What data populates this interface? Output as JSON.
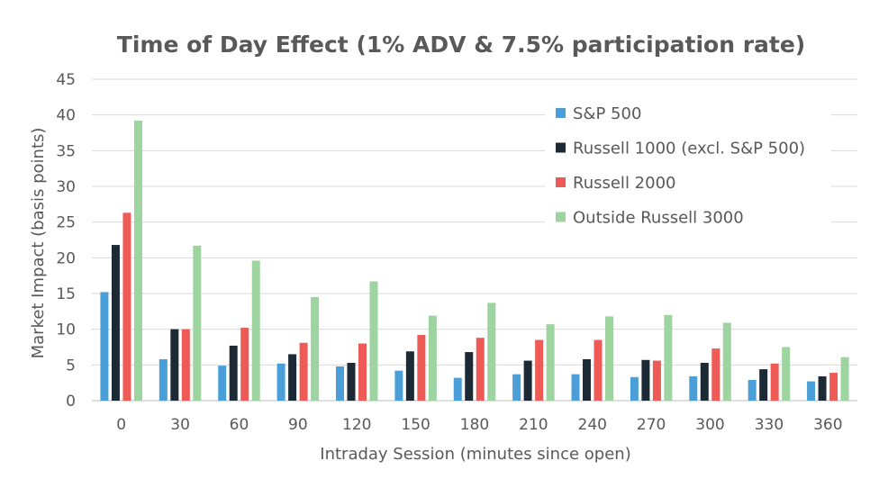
{
  "chart_data": {
    "type": "bar",
    "title": "Time of Day Effect (1% ADV & 7.5% participation rate)",
    "xlabel": "Intraday Session (minutes since open)",
    "ylabel": "Market Impact (basis points)",
    "ylim": [
      0,
      45
    ],
    "yticks": [
      "0",
      "5",
      "10",
      "15",
      "20",
      "25",
      "30",
      "35",
      "40",
      "45"
    ],
    "grid": true,
    "legend_position": "top-right",
    "categories": [
      "0",
      "30",
      "60",
      "90",
      "120",
      "150",
      "180",
      "210",
      "240",
      "270",
      "300",
      "330",
      "360"
    ],
    "series": [
      {
        "name": "S&P 500",
        "color": "#4a9fd8",
        "values": [
          15.2,
          5.8,
          4.9,
          5.2,
          4.8,
          4.2,
          3.2,
          3.7,
          3.7,
          3.3,
          3.4,
          2.9,
          2.7
        ]
      },
      {
        "name": "Russell 1000 (excl. S&P 500)",
        "color": "#1c2a36",
        "values": [
          21.8,
          10.0,
          7.7,
          6.5,
          5.3,
          6.9,
          6.8,
          5.6,
          5.8,
          5.7,
          5.3,
          4.4,
          3.4
        ]
      },
      {
        "name": "Russell 2000",
        "color": "#ee5a55",
        "values": [
          26.3,
          10.0,
          10.2,
          8.1,
          8.0,
          9.2,
          8.8,
          8.5,
          8.5,
          5.6,
          7.3,
          5.2,
          3.9
        ]
      },
      {
        "name": "Outside Russell 3000",
        "color": "#9dd49f",
        "values": [
          39.2,
          21.7,
          19.6,
          14.5,
          16.7,
          11.9,
          13.7,
          10.7,
          11.8,
          12.0,
          10.9,
          7.5,
          6.1
        ]
      }
    ]
  }
}
